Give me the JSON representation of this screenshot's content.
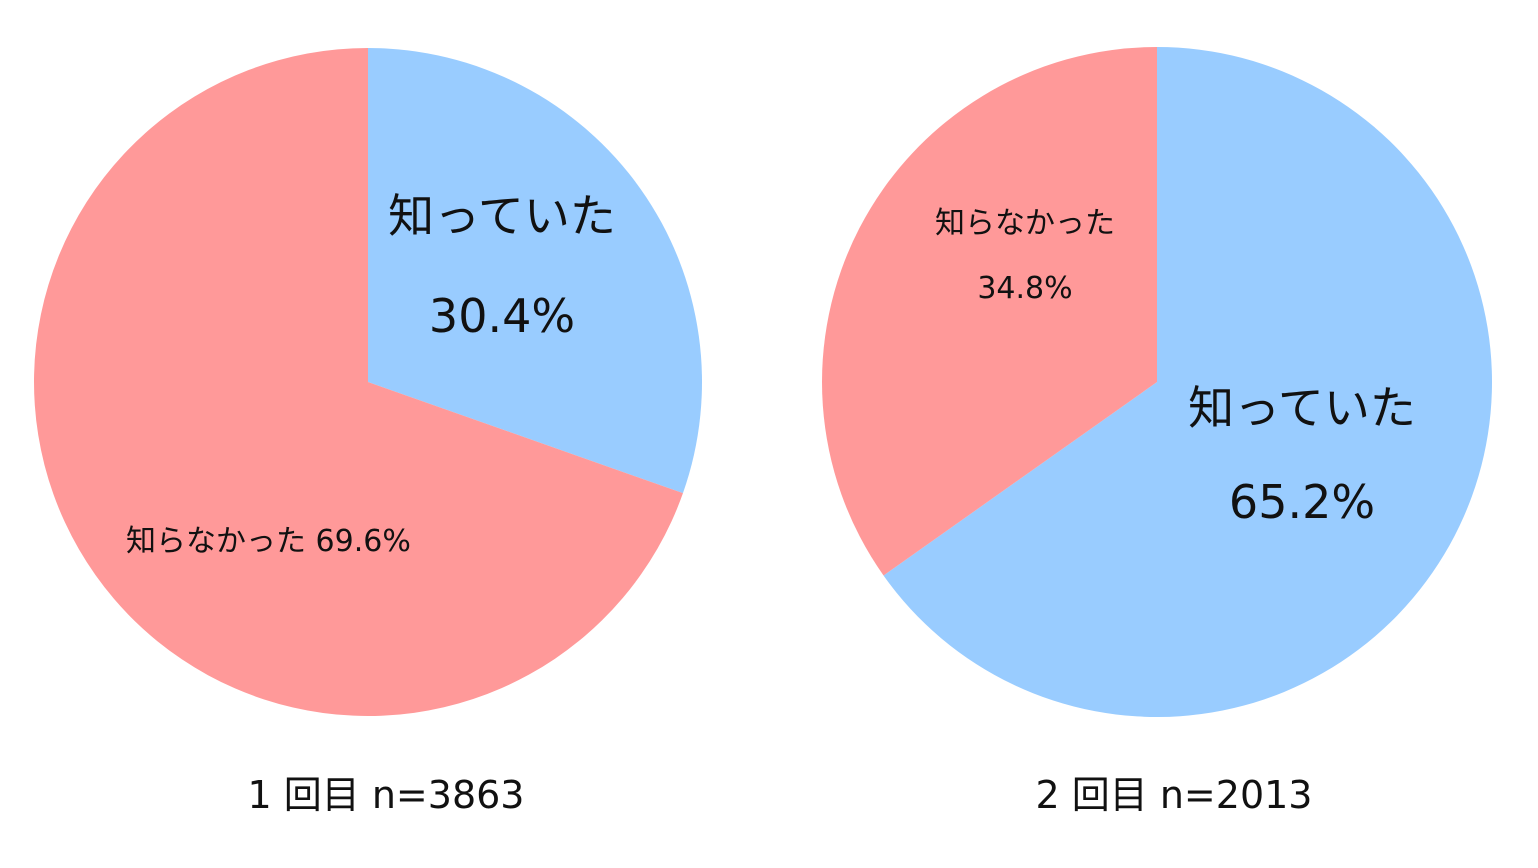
{
  "chart_data": [
    {
      "type": "pie",
      "caption": "1 回目  n=3863",
      "slices": [
        {
          "label": "知っていた",
          "value": 30.4,
          "value_text": "30.4%",
          "color": "#99CCFF"
        },
        {
          "label": "知らなかった",
          "value": 69.6,
          "value_text": "69.6%",
          "color": "#FF9999"
        }
      ]
    },
    {
      "type": "pie",
      "caption": "2 回目  n=2013",
      "slices": [
        {
          "label": "知っていた",
          "value": 65.2,
          "value_text": "65.2%",
          "color": "#99CCFF"
        },
        {
          "label": "知らなかった",
          "value": 34.8,
          "value_text": "34.8%",
          "color": "#FF9999"
        }
      ]
    }
  ]
}
